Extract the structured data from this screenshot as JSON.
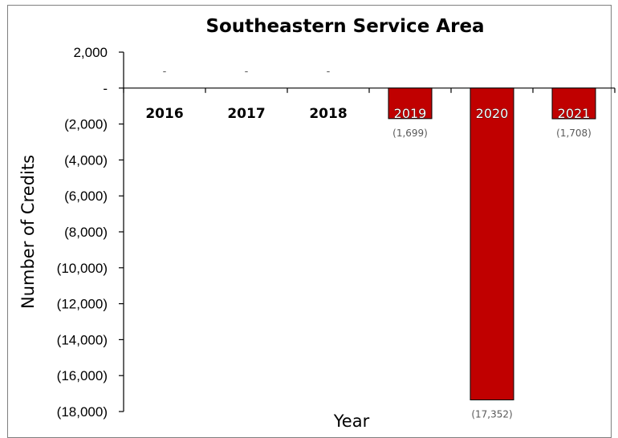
{
  "chart_data": {
    "type": "bar",
    "title": "Southeastern Service Area",
    "xlabel": "Year",
    "ylabel": "Number of Credits",
    "categories": [
      "2016",
      "2017",
      "2018",
      "2019",
      "2020",
      "2021"
    ],
    "values": [
      0,
      0,
      0,
      -1699,
      -17352,
      -1708
    ],
    "data_labels": [
      "-",
      "-",
      "-",
      "(1,699)",
      "(17,352)",
      "(1,708)"
    ],
    "ylim": [
      -18000,
      2000
    ],
    "yticks": [
      2000,
      0,
      -2000,
      -4000,
      -6000,
      -8000,
      -10000,
      -12000,
      -14000,
      -16000,
      -18000
    ],
    "ytick_labels": [
      "2,000",
      "-",
      "(2,000)",
      "(4,000)",
      "(6,000)",
      "(8,000)",
      "(10,000)",
      "(12,000)",
      "(14,000)",
      "(16,000)",
      "(18,000)"
    ],
    "grid": false,
    "legend": "none",
    "bar_color": "#c00000"
  }
}
